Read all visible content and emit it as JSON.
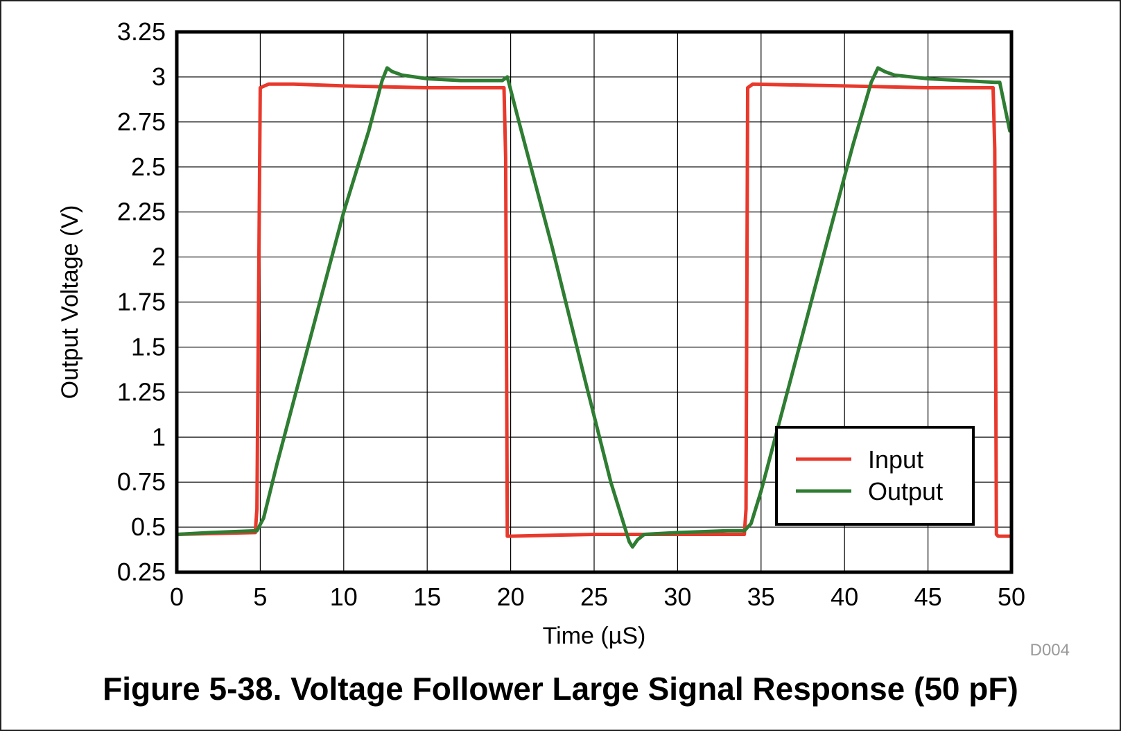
{
  "caption": "Figure 5-38. Voltage Follower Large Signal Response (50 pF)",
  "chart_data": {
    "type": "line",
    "xlabel": "Time (µS)",
    "ylabel": "Output Voltage (V)",
    "xlim": [
      0,
      50
    ],
    "ylim": [
      0.25,
      3.25
    ],
    "x_ticks": [
      "0",
      "5",
      "10",
      "15",
      "20",
      "25",
      "30",
      "35",
      "40",
      "45",
      "50"
    ],
    "y_ticks": [
      "3.25",
      "3",
      "2.75",
      "2.5",
      "2.25",
      "2",
      "1.75",
      "1.5",
      "1.25",
      "1",
      "0.75",
      "0.5",
      "0.25"
    ],
    "grid": true,
    "legend_position": "bottom-right",
    "watermark": "D004",
    "series": [
      {
        "name": "Input",
        "color": "#e8392c",
        "x": [
          0,
          4.7,
          4.8,
          5.0,
          5.5,
          7,
          10,
          15,
          19.6,
          19.7,
          19.8,
          20,
          25,
          30,
          34.0,
          34.1,
          34.2,
          34.5,
          40,
          45,
          48.9,
          49.0,
          49.1,
          49.2,
          50
        ],
        "y": [
          0.46,
          0.47,
          0.6,
          2.94,
          2.96,
          2.96,
          2.95,
          2.94,
          2.94,
          2.55,
          0.45,
          0.45,
          0.46,
          0.46,
          0.46,
          0.6,
          2.94,
          2.96,
          2.95,
          2.94,
          2.94,
          2.6,
          0.46,
          0.45,
          0.45
        ]
      },
      {
        "name": "Output",
        "color": "#2e7d32",
        "x": [
          0,
          2,
          4.8,
          5.2,
          6,
          8,
          10,
          11.5,
          12.3,
          12.6,
          12.9,
          13.5,
          15,
          17,
          19.5,
          19.8,
          20.5,
          22.5,
          24.5,
          26,
          27.1,
          27.3,
          27.6,
          28,
          30,
          33,
          34,
          34.4,
          35,
          37,
          39,
          40.5,
          41.6,
          42.0,
          42.4,
          43,
          45,
          47,
          49.0,
          49.3,
          49.9
        ],
        "y": [
          0.46,
          0.47,
          0.48,
          0.55,
          0.85,
          1.55,
          2.25,
          2.7,
          2.98,
          3.05,
          3.03,
          3.01,
          2.99,
          2.98,
          2.98,
          3.0,
          2.75,
          2.05,
          1.3,
          0.75,
          0.42,
          0.39,
          0.43,
          0.46,
          0.47,
          0.48,
          0.48,
          0.52,
          0.7,
          1.4,
          2.1,
          2.62,
          2.97,
          3.05,
          3.03,
          3.01,
          2.99,
          2.98,
          2.97,
          2.97,
          2.7
        ]
      }
    ]
  }
}
